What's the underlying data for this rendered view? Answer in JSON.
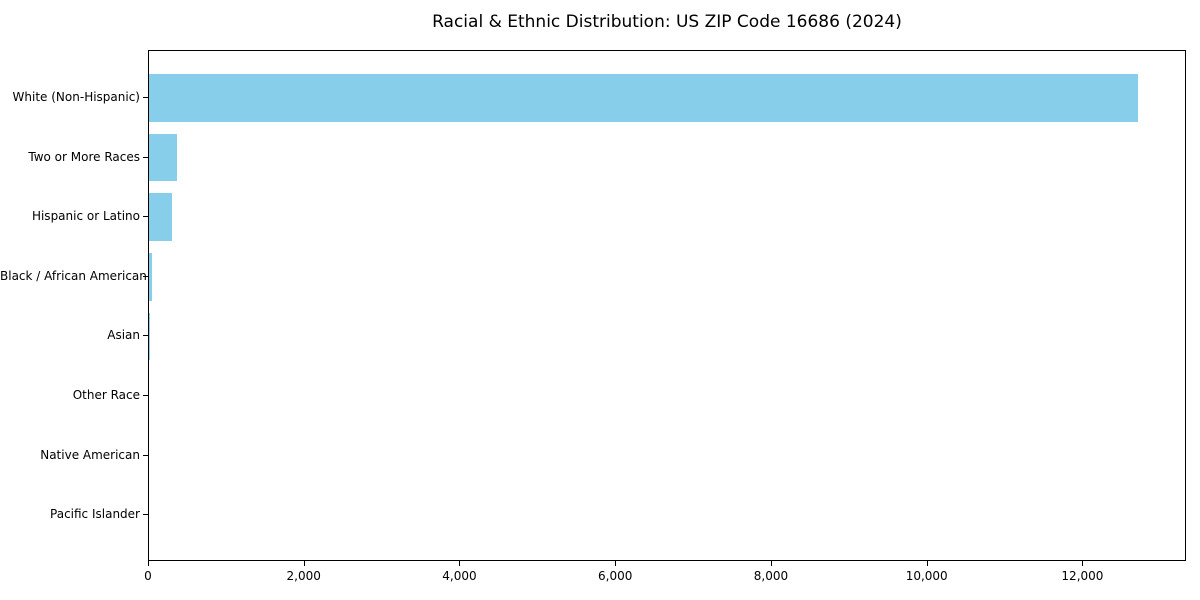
{
  "chart_data": {
    "type": "bar",
    "orientation": "horizontal",
    "title": "Racial & Ethnic Distribution: US ZIP Code 16686 (2024)",
    "categories": [
      "White (Non-Hispanic)",
      "Two or More Races",
      "Hispanic or Latino",
      "Black / African American",
      "Asian",
      "Other Race",
      "Native American",
      "Pacific Islander"
    ],
    "values": [
      12700,
      355,
      290,
      42,
      12,
      0,
      0,
      0
    ],
    "xlabel": "",
    "ylabel": "",
    "xlim": [
      0,
      13330
    ],
    "x_ticks": [
      0,
      2000,
      4000,
      6000,
      8000,
      10000,
      12000
    ],
    "x_tick_labels": [
      "0",
      "2,000",
      "4,000",
      "6,000",
      "8,000",
      "10,000",
      "12,000"
    ],
    "grid": false,
    "legend": null,
    "bar_color": "#87CEEB",
    "axis_color": "#000000",
    "background_color": "#ffffff"
  }
}
